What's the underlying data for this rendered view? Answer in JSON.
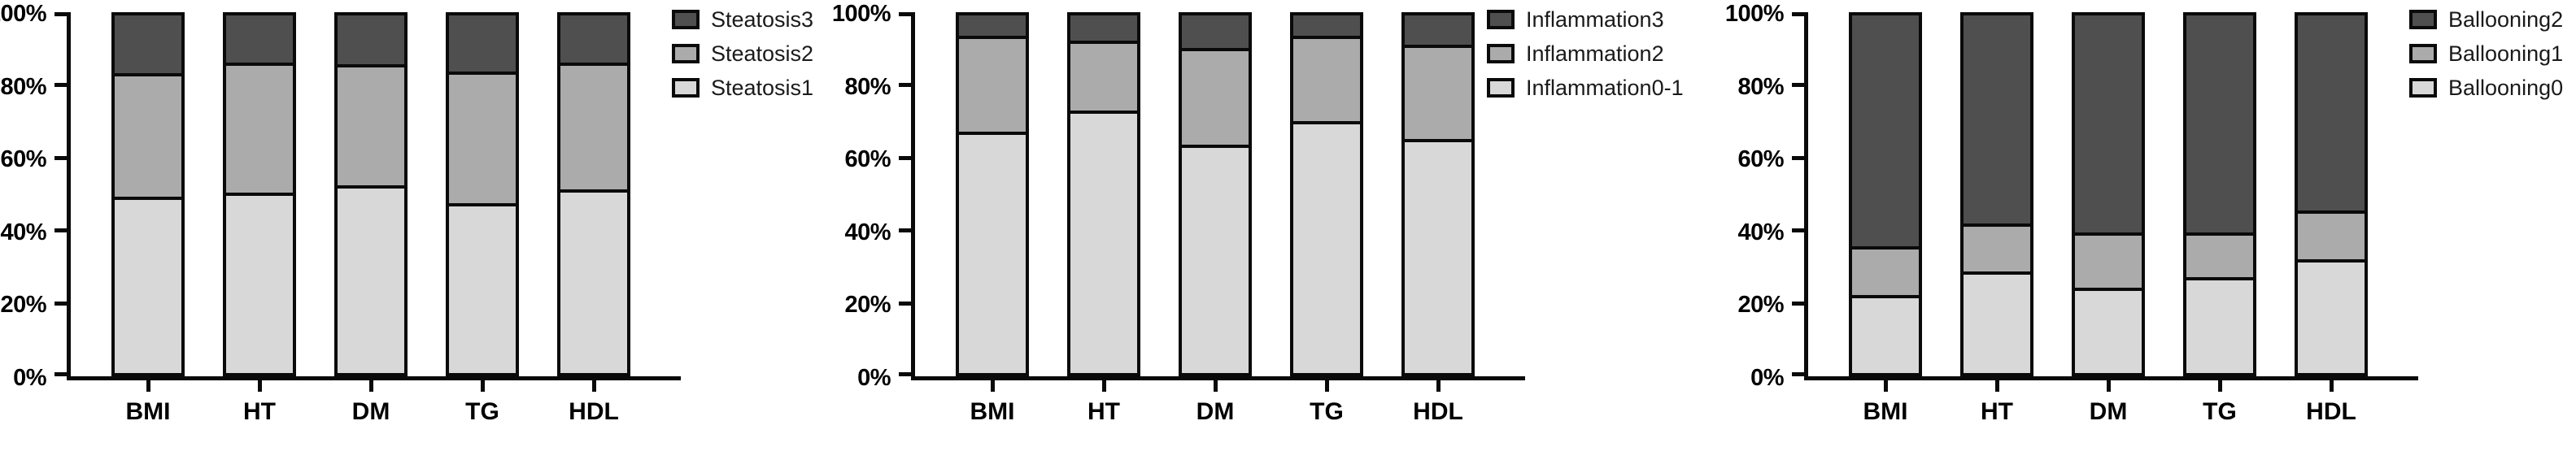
{
  "page": {
    "background": "#ffffff",
    "text_color": "#000000",
    "outline_color": "#0a0a0a"
  },
  "colors": {
    "grade_low": "#d8d8d8",
    "grade_mid": "#ababab",
    "grade_high": "#4f4f4f",
    "outline": "#0a0a0a"
  },
  "axis": {
    "ytick_labels": [
      "0%",
      "20%",
      "40%",
      "60%",
      "80%",
      "100%"
    ],
    "ytick_values": [
      0,
      20,
      40,
      60,
      80,
      100
    ]
  },
  "chart_data": [
    {
      "type": "bar",
      "stacked": true,
      "title": "",
      "xlabel": "",
      "ylabel": "",
      "ylim": [
        0,
        100
      ],
      "grid": false,
      "legend_position": "right",
      "categories": [
        "BMI",
        "HT",
        "DM",
        "TG",
        "HDL"
      ],
      "series": [
        {
          "name": "Steatosis1",
          "color": "#d8d8d8",
          "values": [
            48.5,
            49.5,
            51.5,
            46.5,
            50.5
          ]
        },
        {
          "name": "Steatosis2",
          "color": "#ababab",
          "values": [
            34.5,
            36.5,
            34.0,
            37.0,
            35.5
          ]
        },
        {
          "name": "Steatosis3",
          "color": "#4f4f4f",
          "values": [
            17.0,
            14.0,
            14.5,
            16.5,
            14.0
          ]
        }
      ],
      "legend": [
        "Steatosis3",
        "Steatosis2",
        "Steatosis1"
      ]
    },
    {
      "type": "bar",
      "stacked": true,
      "title": "",
      "xlabel": "",
      "ylabel": "",
      "ylim": [
        0,
        100
      ],
      "grid": false,
      "legend_position": "right",
      "categories": [
        "BMI",
        "HT",
        "DM",
        "TG",
        "HDL"
      ],
      "series": [
        {
          "name": "Inflammation0-1",
          "color": "#d8d8d8",
          "values": [
            66.5,
            72.5,
            63.0,
            69.5,
            64.5
          ]
        },
        {
          "name": "Inflammation2",
          "color": "#ababab",
          "values": [
            27.0,
            19.5,
            27.0,
            24.0,
            26.5
          ]
        },
        {
          "name": "Inflammation3",
          "color": "#4f4f4f",
          "values": [
            6.5,
            8.0,
            10.0,
            6.5,
            9.0
          ]
        }
      ],
      "legend": [
        "Inflammation3",
        "Inflammation2",
        "Inflammation0-1"
      ]
    },
    {
      "type": "bar",
      "stacked": true,
      "title": "",
      "xlabel": "",
      "ylabel": "",
      "ylim": [
        0,
        100
      ],
      "grid": false,
      "legend_position": "right",
      "categories": [
        "BMI",
        "HT",
        "DM",
        "TG",
        "HDL"
      ],
      "series": [
        {
          "name": "Ballooning0",
          "color": "#d8d8d8",
          "values": [
            21.0,
            27.5,
            23.0,
            26.0,
            31.0
          ]
        },
        {
          "name": "Ballooning1",
          "color": "#ababab",
          "values": [
            13.5,
            13.5,
            15.5,
            12.5,
            13.5
          ]
        },
        {
          "name": "Ballooning2",
          "color": "#4f4f4f",
          "values": [
            65.5,
            59.0,
            61.5,
            61.5,
            55.5
          ]
        }
      ],
      "legend": [
        "Ballooning2",
        "Ballooning1",
        "Ballooning0"
      ]
    }
  ]
}
